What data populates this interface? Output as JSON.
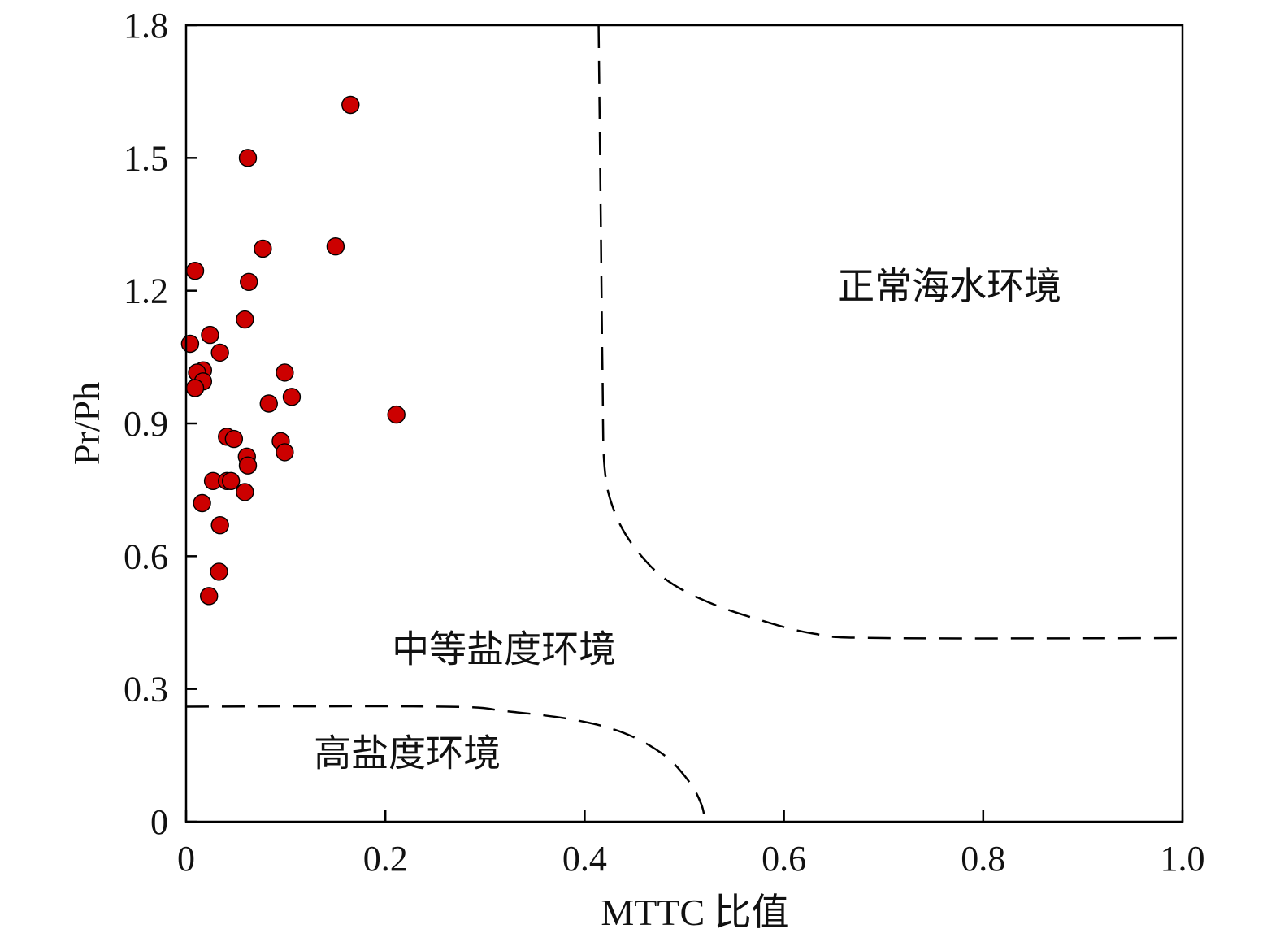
{
  "chart_data": {
    "type": "scatter",
    "xlabel": "MTTC 比值",
    "ylabel": "Pr/Ph",
    "xlim": [
      0,
      1.0
    ],
    "ylim": [
      0,
      1.8
    ],
    "x_ticks": [
      0,
      0.2,
      0.4,
      0.6,
      0.8,
      1.0
    ],
    "x_tick_labels": [
      "0",
      "0.2",
      "0.4",
      "0.6",
      "0.8",
      "1.0"
    ],
    "y_ticks": [
      0,
      0.3,
      0.6,
      0.9,
      1.2,
      1.5,
      1.8
    ],
    "y_tick_labels": [
      "0",
      "0.3",
      "0.6",
      "0.9",
      "1.2",
      "1.5",
      "1.8"
    ],
    "grid": false,
    "marker_color": "#cc0000",
    "marker_edge_color": "#000000",
    "points": [
      {
        "x": 0.165,
        "y": 1.62
      },
      {
        "x": 0.062,
        "y": 1.5
      },
      {
        "x": 0.15,
        "y": 1.3
      },
      {
        "x": 0.077,
        "y": 1.295
      },
      {
        "x": 0.009,
        "y": 1.245
      },
      {
        "x": 0.063,
        "y": 1.22
      },
      {
        "x": 0.059,
        "y": 1.135
      },
      {
        "x": 0.024,
        "y": 1.1
      },
      {
        "x": 0.004,
        "y": 1.08
      },
      {
        "x": 0.034,
        "y": 1.06
      },
      {
        "x": 0.017,
        "y": 1.02
      },
      {
        "x": 0.011,
        "y": 1.015
      },
      {
        "x": 0.099,
        "y": 1.015
      },
      {
        "x": 0.017,
        "y": 0.995
      },
      {
        "x": 0.009,
        "y": 0.98
      },
      {
        "x": 0.106,
        "y": 0.96
      },
      {
        "x": 0.083,
        "y": 0.945
      },
      {
        "x": 0.211,
        "y": 0.92
      },
      {
        "x": 0.041,
        "y": 0.87
      },
      {
        "x": 0.048,
        "y": 0.865
      },
      {
        "x": 0.095,
        "y": 0.86
      },
      {
        "x": 0.099,
        "y": 0.835
      },
      {
        "x": 0.061,
        "y": 0.825
      },
      {
        "x": 0.062,
        "y": 0.805
      },
      {
        "x": 0.027,
        "y": 0.77
      },
      {
        "x": 0.041,
        "y": 0.77
      },
      {
        "x": 0.045,
        "y": 0.77
      },
      {
        "x": 0.059,
        "y": 0.745
      },
      {
        "x": 0.016,
        "y": 0.72
      },
      {
        "x": 0.034,
        "y": 0.67
      },
      {
        "x": 0.033,
        "y": 0.565
      },
      {
        "x": 0.023,
        "y": 0.51
      }
    ],
    "boundaries": [
      {
        "name": "normal-marine-boundary",
        "style": "dashed",
        "points": [
          [
            0.414,
            1.8
          ],
          [
            0.416,
            1.4
          ],
          [
            0.418,
            1.0
          ],
          [
            0.42,
            0.8
          ],
          [
            0.43,
            0.7
          ],
          [
            0.45,
            0.62
          ],
          [
            0.48,
            0.55
          ],
          [
            0.52,
            0.5
          ],
          [
            0.57,
            0.46
          ],
          [
            0.63,
            0.425
          ],
          [
            0.7,
            0.415
          ],
          [
            1.0,
            0.415
          ]
        ]
      },
      {
        "name": "high-salinity-boundary",
        "style": "dashed",
        "points": [
          [
            0.0,
            0.26
          ],
          [
            0.26,
            0.26
          ],
          [
            0.32,
            0.25
          ],
          [
            0.39,
            0.23
          ],
          [
            0.44,
            0.2
          ],
          [
            0.48,
            0.15
          ],
          [
            0.505,
            0.09
          ],
          [
            0.517,
            0.04
          ],
          [
            0.521,
            0.0
          ]
        ]
      }
    ],
    "annotations": [
      {
        "text": "正常海水环境",
        "x": 0.766,
        "y": 1.21
      },
      {
        "text": "中等盐度环境",
        "x": 0.319,
        "y": 0.39
      },
      {
        "text": "高盐度环境",
        "x": 0.222,
        "y": 0.155
      }
    ]
  }
}
